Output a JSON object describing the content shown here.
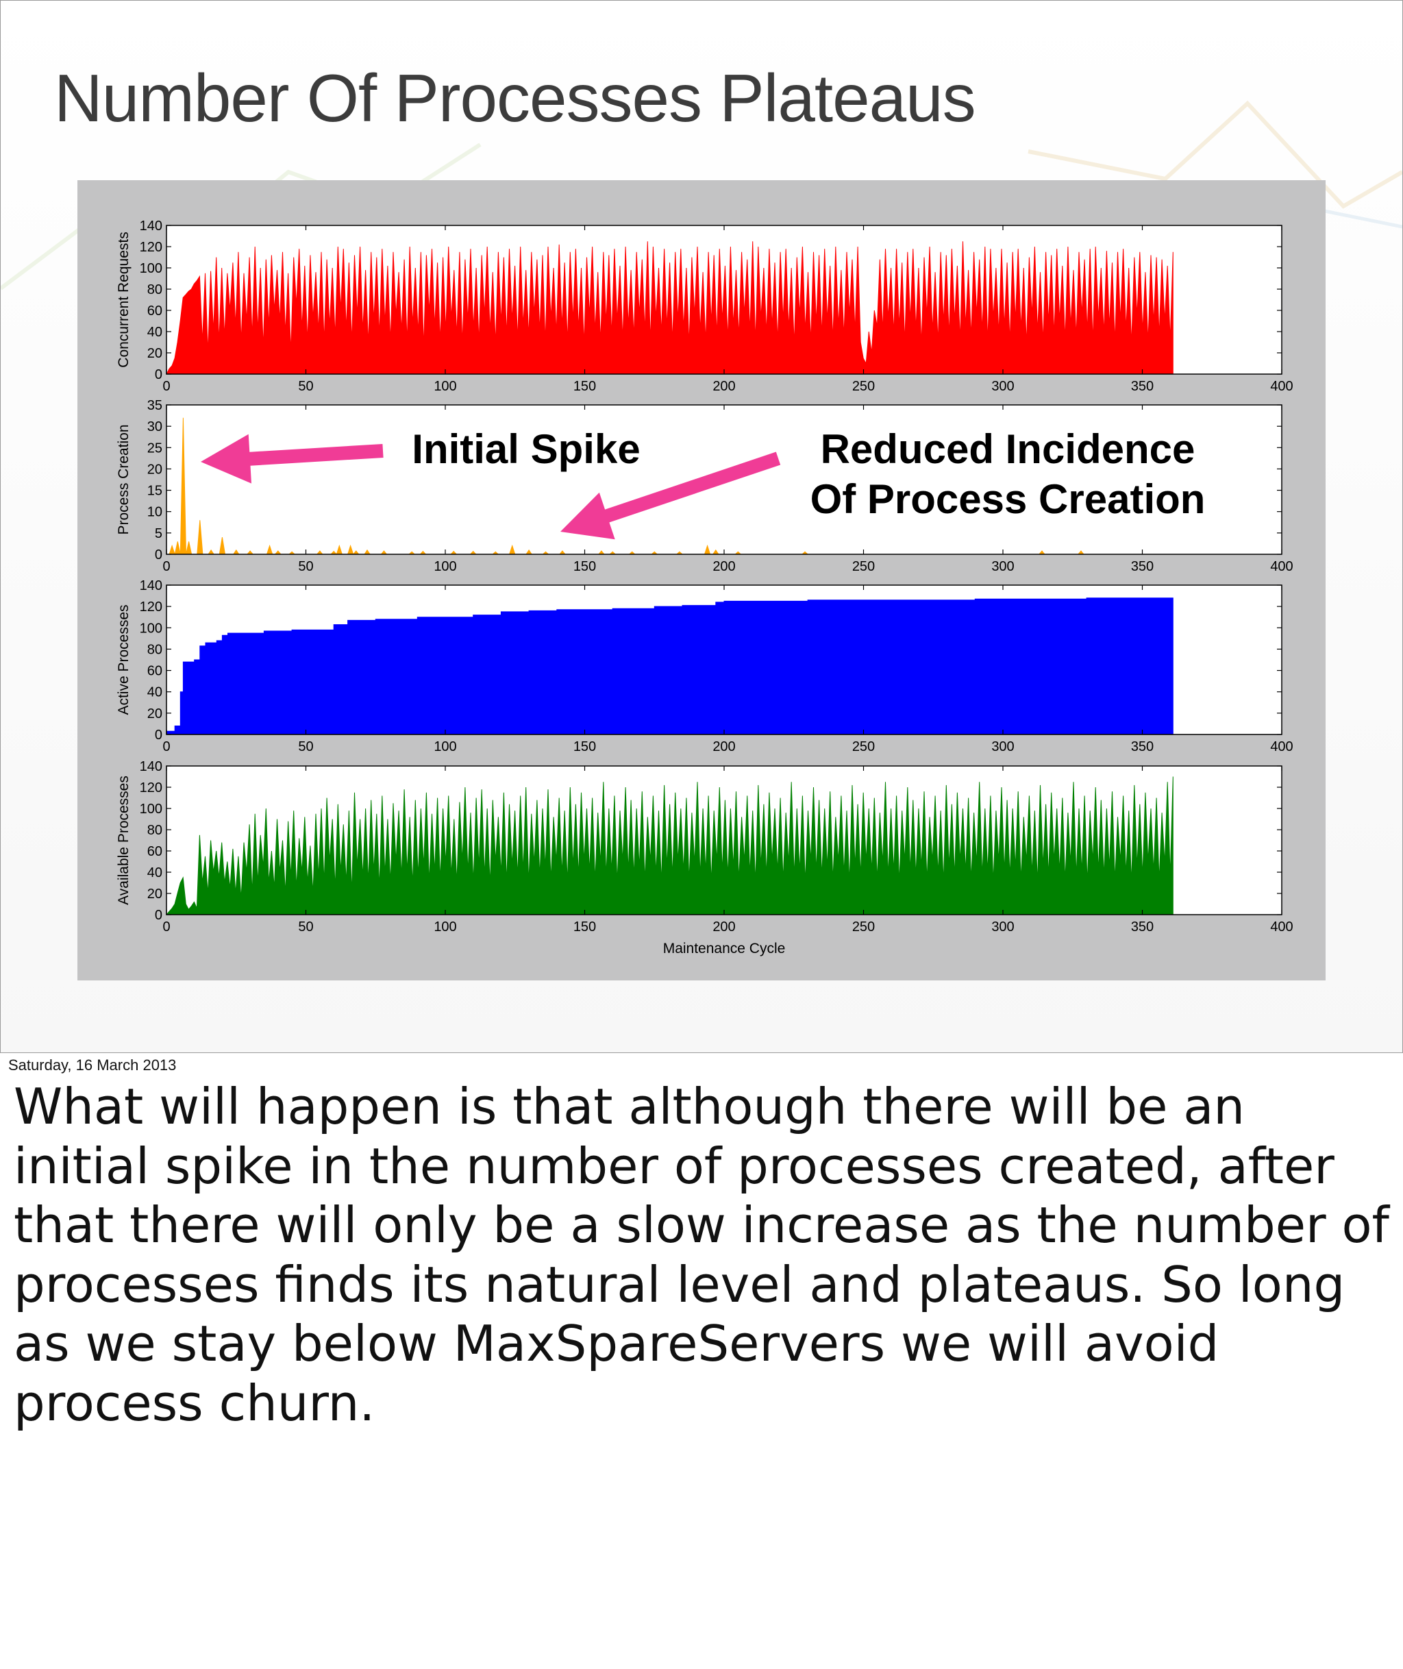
{
  "slide": {
    "title": "Number Of Processes Plateaus",
    "date": "Saturday, 16 March 2013",
    "notes": "What will happen is that although there will be an initial spike in the number of processes created, after that there will only be a slow increase as the number of processes finds its natural level and plateaus. So long as we stay below MaxSpareServers we will avoid process churn.",
    "annotations": {
      "initial_spike": "Initial Spike",
      "reduced_line1": "Reduced Incidence",
      "reduced_line2": "Of Process Creation",
      "arrow_color": "#f03c96"
    }
  },
  "chart_data": [
    {
      "type": "area",
      "ylabel": "Concurrent Requests",
      "color": "#ff0000",
      "xlim": [
        0,
        400
      ],
      "ylim": [
        0,
        140
      ],
      "xticks": [
        0,
        50,
        100,
        150,
        200,
        250,
        300,
        350,
        400
      ],
      "yticks": [
        0,
        20,
        40,
        60,
        80,
        100,
        120,
        140
      ],
      "x_end": 361,
      "values": [
        0,
        5,
        8,
        15,
        30,
        50,
        72,
        75,
        78,
        80,
        85,
        88,
        92,
        30,
        95,
        20,
        97,
        40,
        110,
        30,
        100,
        35,
        95,
        60,
        105,
        45,
        115,
        30,
        95,
        50,
        110,
        35,
        120,
        40,
        100,
        25,
        108,
        45,
        112,
        60,
        98,
        50,
        115,
        38,
        95,
        20,
        110,
        65,
        118,
        42,
        102,
        30,
        112,
        52,
        96,
        40,
        115,
        30,
        108,
        45,
        100,
        35,
        120,
        60,
        118,
        42,
        105,
        30,
        112,
        55,
        120,
        40,
        98,
        28,
        115,
        50,
        110,
        36,
        118,
        48,
        102,
        30,
        115,
        55,
        96,
        40,
        108,
        30,
        120,
        46,
        100,
        38,
        115,
        25,
        112,
        58,
        118,
        44,
        105,
        30,
        110,
        40,
        120,
        52,
        98,
        36,
        115,
        28,
        108,
        50,
        118,
        42,
        100,
        30,
        112,
        55,
        120,
        40,
        96,
        28,
        115,
        48,
        110,
        36,
        118,
        50,
        102,
        32,
        120,
        45,
        98,
        35,
        115,
        56,
        108,
        40,
        112,
        30,
        120,
        52,
        100,
        38,
        122,
        44,
        105,
        30,
        115,
        50,
        118,
        42,
        100,
        28,
        110,
        55,
        120,
        40,
        96,
        30,
        115,
        48,
        112,
        36,
        118,
        50,
        102,
        32,
        120,
        45,
        98,
        35,
        115,
        56,
        108,
        40,
        125,
        30,
        120,
        52,
        100,
        38,
        118,
        44,
        105,
        30,
        115,
        50,
        118,
        42,
        100,
        28,
        110,
        55,
        120,
        40,
        96,
        30,
        115,
        48,
        112,
        36,
        118,
        50,
        102,
        32,
        120,
        45,
        98,
        35,
        115,
        56,
        108,
        40,
        125,
        30,
        120,
        52,
        100,
        38,
        118,
        44,
        105,
        30,
        115,
        50,
        118,
        42,
        100,
        28,
        110,
        55,
        120,
        40,
        96,
        30,
        115,
        48,
        112,
        36,
        118,
        50,
        102,
        32,
        120,
        45,
        98,
        35,
        115,
        56,
        108,
        40,
        120,
        30,
        15,
        10,
        40,
        20,
        60,
        45,
        108,
        40,
        118,
        52,
        100,
        38,
        118,
        44,
        105,
        30,
        115,
        50,
        118,
        42,
        100,
        28,
        110,
        55,
        120,
        40,
        96,
        30,
        115,
        48,
        112,
        36,
        118,
        50,
        102,
        32,
        125,
        45,
        98,
        35,
        115,
        56,
        108,
        40,
        120,
        30,
        118,
        52,
        100,
        38,
        118,
        44,
        105,
        30,
        115,
        50,
        118,
        42,
        100,
        28,
        110,
        55,
        120,
        40,
        96,
        30,
        115,
        48,
        112,
        36,
        118,
        50,
        102,
        32,
        120,
        45,
        98,
        35,
        115,
        56,
        108,
        40,
        118,
        30,
        120,
        52,
        100,
        38,
        116,
        44,
        105,
        30,
        115,
        50,
        118,
        42,
        100,
        28,
        110,
        55,
        115,
        40,
        96,
        30,
        112,
        48,
        110,
        36,
        108,
        50,
        102,
        32,
        115
      ]
    },
    {
      "type": "area",
      "ylabel": "Process Creation",
      "color": "#ffa500",
      "xlim": [
        0,
        400
      ],
      "ylim": [
        0,
        35
      ],
      "xticks": [
        0,
        50,
        100,
        150,
        200,
        250,
        300,
        350,
        400
      ],
      "yticks": [
        0,
        5,
        10,
        15,
        20,
        25,
        30,
        35
      ],
      "x_end": 361,
      "spikes": [
        [
          2,
          2
        ],
        [
          4,
          3
        ],
        [
          6,
          32
        ],
        [
          8,
          3
        ],
        [
          12,
          8
        ],
        [
          16,
          1
        ],
        [
          20,
          4
        ],
        [
          25,
          1
        ],
        [
          30,
          0.8
        ],
        [
          37,
          2
        ],
        [
          40,
          0.8
        ],
        [
          45,
          0.6
        ],
        [
          55,
          0.8
        ],
        [
          60,
          0.7
        ],
        [
          62,
          2
        ],
        [
          66,
          2
        ],
        [
          68,
          0.8
        ],
        [
          72,
          1
        ],
        [
          78,
          0.8
        ],
        [
          88,
          0.6
        ],
        [
          92,
          0.7
        ],
        [
          103,
          0.7
        ],
        [
          110,
          0.7
        ],
        [
          118,
          0.6
        ],
        [
          124,
          2
        ],
        [
          130,
          1
        ],
        [
          136,
          0.6
        ],
        [
          142,
          0.8
        ],
        [
          156,
          0.8
        ],
        [
          160,
          0.6
        ],
        [
          167,
          0.6
        ],
        [
          175,
          0.6
        ],
        [
          184,
          0.6
        ],
        [
          194,
          2
        ],
        [
          197,
          1
        ],
        [
          205,
          0.6
        ],
        [
          229,
          0.6
        ],
        [
          314,
          0.8
        ],
        [
          328,
          0.8
        ]
      ]
    },
    {
      "type": "area",
      "ylabel": "Active Processes",
      "color": "#0000ff",
      "xlim": [
        0,
        400
      ],
      "ylim": [
        0,
        140
      ],
      "xticks": [
        0,
        50,
        100,
        150,
        200,
        250,
        300,
        350,
        400
      ],
      "yticks": [
        0,
        20,
        40,
        60,
        80,
        100,
        120,
        140
      ],
      "x_end": 361,
      "steps": [
        [
          0,
          3
        ],
        [
          3,
          8
        ],
        [
          5,
          40
        ],
        [
          6,
          68
        ],
        [
          10,
          70
        ],
        [
          12,
          83
        ],
        [
          14,
          86
        ],
        [
          18,
          88
        ],
        [
          20,
          93
        ],
        [
          22,
          95
        ],
        [
          35,
          97
        ],
        [
          45,
          98
        ],
        [
          60,
          103
        ],
        [
          65,
          107
        ],
        [
          75,
          108
        ],
        [
          90,
          110
        ],
        [
          110,
          112
        ],
        [
          120,
          115
        ],
        [
          130,
          116
        ],
        [
          140,
          117
        ],
        [
          150,
          117
        ],
        [
          160,
          118
        ],
        [
          175,
          120
        ],
        [
          185,
          121
        ],
        [
          197,
          124
        ],
        [
          200,
          125
        ],
        [
          230,
          126
        ],
        [
          290,
          127
        ],
        [
          330,
          128
        ],
        [
          361,
          128
        ]
      ]
    },
    {
      "type": "area",
      "ylabel": "Available Processes",
      "xlabel": "Maintenance Cycle",
      "color": "#008000",
      "xlim": [
        0,
        400
      ],
      "ylim": [
        0,
        140
      ],
      "xticks": [
        0,
        50,
        100,
        150,
        200,
        250,
        300,
        350,
        400
      ],
      "yticks": [
        0,
        20,
        40,
        60,
        80,
        100,
        120,
        140
      ],
      "x_end": 361,
      "values": [
        0,
        3,
        6,
        10,
        20,
        30,
        35,
        10,
        5,
        8,
        12,
        6,
        75,
        30,
        55,
        20,
        70,
        40,
        60,
        35,
        68,
        30,
        50,
        25,
        62,
        20,
        55,
        15,
        68,
        40,
        85,
        20,
        95,
        30,
        75,
        45,
        100,
        30,
        60,
        25,
        90,
        40,
        70,
        20,
        88,
        35,
        98,
        25,
        72,
        40,
        92,
        30,
        65,
        20,
        95,
        35,
        100,
        30,
        110,
        50,
        90,
        25,
        104,
        40,
        85,
        30,
        98,
        20,
        115,
        45,
        90,
        35,
        100,
        30,
        108,
        40,
        95,
        25,
        112,
        38,
        90,
        30,
        105,
        50,
        98,
        35,
        118,
        40,
        92,
        28,
        108,
        36,
        100,
        45,
        115,
        30,
        95,
        40,
        110,
        32,
        100,
        48,
        112,
        36,
        90,
        30,
        106,
        50,
        120,
        40,
        96,
        30,
        110,
        45,
        118,
        36,
        100,
        28,
        108,
        50,
        92,
        38,
        115,
        30,
        104,
        46,
        98,
        36,
        112,
        40,
        120,
        30,
        95,
        48,
        108,
        36,
        100,
        44,
        118,
        32,
        92,
        50,
        110,
        38,
        98,
        30,
        120,
        45,
        104,
        36,
        115,
        50,
        100,
        40,
        110,
        32,
        96,
        48,
        125,
        36,
        100,
        40,
        112,
        30,
        98,
        50,
        120,
        40,
        108,
        36,
        100,
        44,
        116,
        32,
        92,
        50,
        112,
        38,
        98,
        30,
        122,
        45,
        104,
        36,
        115,
        50,
        100,
        40,
        110,
        32,
        96,
        48,
        125,
        36,
        100,
        40,
        112,
        30,
        98,
        50,
        120,
        40,
        108,
        36,
        100,
        44,
        116,
        32,
        92,
        50,
        112,
        38,
        98,
        30,
        122,
        45,
        104,
        36,
        115,
        50,
        100,
        40,
        110,
        32,
        96,
        48,
        125,
        36,
        100,
        40,
        112,
        30,
        98,
        50,
        120,
        40,
        108,
        36,
        100,
        44,
        116,
        32,
        92,
        50,
        112,
        38,
        98,
        30,
        122,
        45,
        104,
        36,
        115,
        50,
        100,
        40,
        110,
        32,
        96,
        48,
        125,
        36,
        100,
        40,
        112,
        30,
        98,
        50,
        120,
        40,
        108,
        36,
        100,
        44,
        116,
        32,
        92,
        50,
        112,
        38,
        98,
        30,
        122,
        45,
        104,
        36,
        115,
        50,
        100,
        40,
        110,
        32,
        96,
        48,
        125,
        36,
        100,
        40,
        112,
        30,
        98,
        50,
        120,
        40,
        108,
        36,
        100,
        44,
        116,
        32,
        92,
        50,
        112,
        38,
        98,
        30,
        122,
        45,
        104,
        36,
        115,
        50,
        100,
        40,
        110,
        32,
        96,
        48,
        125,
        36,
        100,
        40,
        112,
        30,
        98,
        50,
        120,
        40,
        108,
        36,
        100,
        44,
        116,
        32,
        92,
        50,
        112,
        38,
        98,
        30,
        122,
        45,
        104,
        36,
        115,
        50,
        100,
        40,
        110,
        32,
        96,
        48,
        125,
        36,
        130
      ]
    }
  ]
}
